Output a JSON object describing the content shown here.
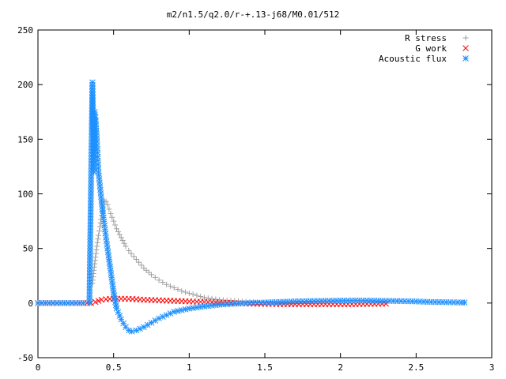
{
  "chart_data": {
    "type": "scatter",
    "title": "m2/n1.5/q2.0/r-+.13-j68/M0.01/512",
    "xlabel": "",
    "ylabel": "",
    "xlim": [
      0,
      3
    ],
    "ylim": [
      -50,
      250
    ],
    "x_ticks": [
      "0",
      "0.5",
      "1",
      "1.5",
      "2",
      "2.5",
      "3"
    ],
    "y_ticks": [
      "-50",
      "0",
      "50",
      "100",
      "150",
      "200",
      "250"
    ],
    "grid": false,
    "legend_position": "top-right",
    "series": [
      {
        "name": "R stress",
        "marker": "plus",
        "color": "#a0a0a0",
        "x": [
          0.36,
          0.37,
          0.38,
          0.39,
          0.4,
          0.41,
          0.42,
          0.43,
          0.44,
          0.45,
          0.46,
          0.47,
          0.48,
          0.5,
          0.52,
          0.55,
          0.58,
          0.6,
          0.65,
          0.7,
          0.75,
          0.8,
          0.85,
          0.9,
          0.95,
          1.0,
          1.05,
          1.1,
          1.15,
          1.2,
          1.25,
          1.3,
          1.35,
          1.4,
          1.45
        ],
        "y": [
          18,
          30,
          42,
          52,
          62,
          70,
          80,
          88,
          93,
          93,
          90,
          86,
          82,
          75,
          68,
          60,
          52,
          48,
          40,
          32,
          26,
          21,
          17,
          14,
          11,
          9,
          7,
          5,
          4,
          3,
          2.5,
          2,
          1.5,
          1,
          0.8
        ]
      },
      {
        "name": "G work",
        "marker": "cross",
        "color": "#ff0000",
        "x": [
          0,
          0.1,
          0.2,
          0.3,
          0.35,
          0.38,
          0.4,
          0.42,
          0.45,
          0.5,
          0.55,
          0.6,
          0.65,
          0.7,
          0.8,
          0.9,
          1.0,
          1.1,
          1.2,
          1.3,
          1.4,
          1.5,
          1.6,
          1.7,
          1.8,
          1.9,
          2.0,
          2.1,
          2.2,
          2.3
        ],
        "y": [
          0,
          0,
          0,
          0,
          0,
          1,
          2,
          3,
          3.5,
          4,
          4,
          3.8,
          3.5,
          3,
          2.5,
          2,
          1.5,
          1,
          0.5,
          0,
          -0.5,
          -0.8,
          -1,
          -1,
          -1,
          -1,
          -1,
          -1,
          -0.8,
          -0.6
        ]
      },
      {
        "name": "Acoustic flux",
        "marker": "star",
        "color": "#1e90ff",
        "x": [
          0,
          0.1,
          0.2,
          0.3,
          0.34,
          0.36,
          0.37,
          0.375,
          0.38,
          0.385,
          0.39,
          0.395,
          0.4,
          0.41,
          0.42,
          0.43,
          0.44,
          0.45,
          0.46,
          0.47,
          0.48,
          0.49,
          0.5,
          0.52,
          0.55,
          0.58,
          0.6,
          0.62,
          0.65,
          0.7,
          0.75,
          0.8,
          0.85,
          0.9,
          1.0,
          1.1,
          1.2,
          1.3,
          1.4,
          1.5,
          1.6,
          1.7,
          1.8,
          1.9,
          2.0,
          2.1,
          2.2,
          2.3,
          2.4,
          2.5,
          2.6,
          2.7,
          2.8,
          2.82
        ],
        "y": [
          0,
          0,
          0,
          0,
          0,
          202,
          120,
          175,
          170,
          160,
          148,
          134,
          120,
          107,
          94,
          82,
          71,
          60,
          50,
          40,
          30,
          20,
          10,
          -5,
          -15,
          -22,
          -25,
          -26,
          -25,
          -22,
          -18,
          -14,
          -11,
          -8,
          -5,
          -3,
          -1.5,
          -0.5,
          0,
          0.5,
          1,
          1.5,
          1.8,
          2,
          2.2,
          2.3,
          2.2,
          2,
          1.8,
          1.5,
          1,
          0.8,
          0.5,
          0.5
        ]
      }
    ]
  }
}
